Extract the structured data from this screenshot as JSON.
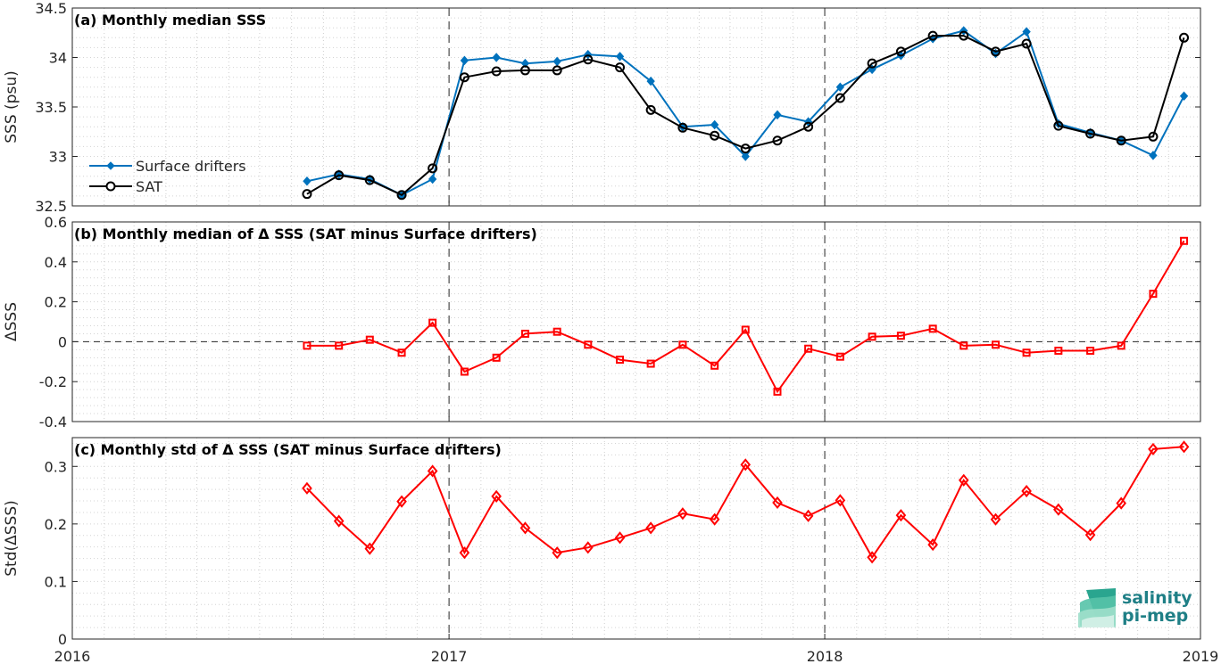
{
  "chart_data": [
    {
      "type": "line",
      "title": "(a) Monthly median SSS",
      "ylabel": "SSS (psu)",
      "ylim": [
        32.5,
        34.5
      ],
      "yticks": [
        32.5,
        33,
        33.5,
        34,
        34.5
      ],
      "ytick_labels": [
        "32.5",
        "33",
        "33.5",
        "34",
        "34.5"
      ],
      "grid": true,
      "legend": "lower-left",
      "x": [
        "2016-08",
        "2016-09",
        "2016-10",
        "2016-11",
        "2016-12",
        "2017-01",
        "2017-02",
        "2017-03",
        "2017-04",
        "2017-05",
        "2017-06",
        "2017-07",
        "2017-08",
        "2017-09",
        "2017-10",
        "2017-11",
        "2017-12",
        "2018-01",
        "2018-02",
        "2018-03",
        "2018-04",
        "2018-05",
        "2018-06",
        "2018-07",
        "2018-08",
        "2018-09",
        "2018-10",
        "2018-11",
        "2018-12"
      ],
      "series": [
        {
          "name": "Surface drifters",
          "color": "#0072bd",
          "marker": "diamond-filled",
          "values": [
            32.75,
            32.82,
            32.77,
            32.61,
            32.77,
            33.97,
            34.0,
            33.94,
            33.96,
            34.03,
            34.01,
            33.76,
            33.3,
            33.32,
            33.0,
            33.42,
            33.35,
            33.7,
            33.88,
            34.02,
            34.19,
            34.27,
            34.04,
            34.26,
            33.33,
            33.24,
            33.16,
            33.01,
            33.61
          ]
        },
        {
          "name": "SAT",
          "color": "#000000",
          "marker": "circle-open",
          "values": [
            32.62,
            32.81,
            32.76,
            32.61,
            32.88,
            33.8,
            33.86,
            33.87,
            33.87,
            33.98,
            33.9,
            33.47,
            33.29,
            33.21,
            33.08,
            33.16,
            33.3,
            33.59,
            33.94,
            34.06,
            34.22,
            34.22,
            34.06,
            34.14,
            33.31,
            33.23,
            33.16,
            33.2,
            34.2
          ]
        }
      ]
    },
    {
      "type": "line",
      "title": "(b) Monthly median of Δ SSS (SAT minus Surface drifters)",
      "ylabel": "ΔSSS",
      "ylim": [
        -0.4,
        0.6
      ],
      "yticks": [
        -0.4,
        -0.2,
        0,
        0.2,
        0.4,
        0.6
      ],
      "ytick_labels": [
        "-0.4",
        "-0.2",
        "0",
        "0.2",
        "0.4",
        "0.6"
      ],
      "grid": true,
      "zero_line": true,
      "x": [
        "2016-08",
        "2016-09",
        "2016-10",
        "2016-11",
        "2016-12",
        "2017-01",
        "2017-02",
        "2017-03",
        "2017-04",
        "2017-05",
        "2017-06",
        "2017-07",
        "2017-08",
        "2017-09",
        "2017-10",
        "2017-11",
        "2017-12",
        "2018-01",
        "2018-02",
        "2018-03",
        "2018-04",
        "2018-05",
        "2018-06",
        "2018-07",
        "2018-08",
        "2018-09",
        "2018-10",
        "2018-11",
        "2018-12"
      ],
      "series": [
        {
          "color": "#ff0000",
          "marker": "square-open",
          "values": [
            -0.02,
            -0.02,
            0.01,
            -0.055,
            0.095,
            -0.15,
            -0.08,
            0.04,
            0.05,
            -0.015,
            -0.09,
            -0.11,
            -0.015,
            -0.12,
            0.06,
            -0.25,
            -0.035,
            -0.075,
            0.025,
            0.03,
            0.065,
            -0.02,
            -0.015,
            -0.055,
            -0.045,
            -0.045,
            -0.02,
            0.24,
            0.505
          ]
        }
      ]
    },
    {
      "type": "line",
      "title": "(c) Monthly std of Δ SSS (SAT minus Surface drifters)",
      "ylabel": "Std(ΔSSS)",
      "ylim": [
        0,
        0.35
      ],
      "yticks": [
        0,
        0.1,
        0.2,
        0.3
      ],
      "ytick_labels": [
        "0",
        "0.1",
        "0.2",
        "0.3"
      ],
      "grid": true,
      "x": [
        "2016-08",
        "2016-09",
        "2016-10",
        "2016-11",
        "2016-12",
        "2017-01",
        "2017-02",
        "2017-03",
        "2017-04",
        "2017-05",
        "2017-06",
        "2017-07",
        "2017-08",
        "2017-09",
        "2017-10",
        "2017-11",
        "2017-12",
        "2018-01",
        "2018-02",
        "2018-03",
        "2018-04",
        "2018-05",
        "2018-06",
        "2018-07",
        "2018-08",
        "2018-09",
        "2018-10",
        "2018-11",
        "2018-12"
      ],
      "series": [
        {
          "color": "#ff0000",
          "marker": "diamond-open",
          "values": [
            0.262,
            0.205,
            0.157,
            0.239,
            0.292,
            0.15,
            0.248,
            0.193,
            0.15,
            0.159,
            0.176,
            0.193,
            0.218,
            0.208,
            0.303,
            0.237,
            0.214,
            0.241,
            0.142,
            0.215,
            0.164,
            0.276,
            0.208,
            0.257,
            0.225,
            0.181,
            0.236,
            0.33,
            0.334
          ]
        }
      ]
    }
  ],
  "x_axis": {
    "xlim": [
      "2016-01-01",
      "2019-01-01"
    ],
    "ticks": [
      "2016-01-01",
      "2017-01-01",
      "2018-01-01",
      "2019-01-01"
    ],
    "tick_labels": [
      "2016",
      "2017",
      "2018",
      "2019"
    ],
    "year_divider_dates": [
      "2017-01-01",
      "2018-01-01"
    ]
  },
  "logo": {
    "line1": "salinity",
    "line2": "pi-mep",
    "color": "#1f7f86"
  }
}
